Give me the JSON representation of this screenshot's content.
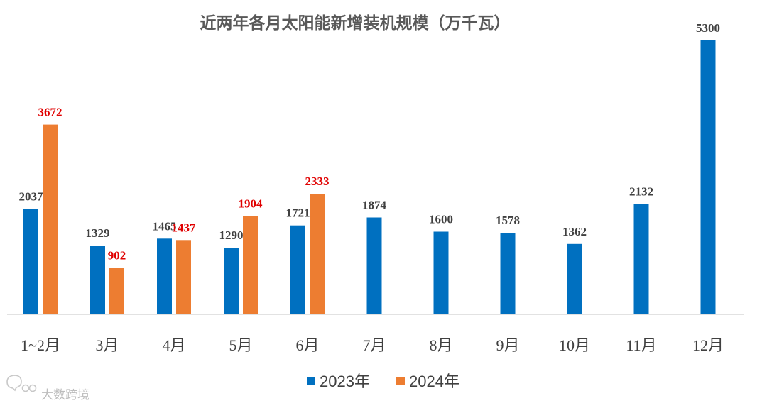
{
  "chart_data": {
    "type": "bar",
    "title": "近两年各月太阳能新增装机规模（万千瓦）",
    "categories": [
      "1~2月",
      "3月",
      "4月",
      "5月",
      "6月",
      "7月",
      "8月",
      "9月",
      "10月",
      "11月",
      "12月"
    ],
    "series": [
      {
        "name": "2023年",
        "color": "#0070C0",
        "label_color": "#404040",
        "values": [
          2037,
          1329,
          1465,
          1290,
          1721,
          1874,
          1600,
          1578,
          1362,
          2132,
          5300
        ]
      },
      {
        "name": "2024年",
        "color": "#ED7D31",
        "label_color": "#E00000",
        "values": [
          3672,
          902,
          1437,
          1904,
          2333,
          null,
          null,
          null,
          null,
          null,
          null
        ]
      }
    ],
    "ylim": [
      0,
      5300
    ],
    "grid": false,
    "legend_position": "bottom"
  },
  "watermark": {
    "text": "大数跨境",
    "icon": "chat-bubble-logo-icon"
  }
}
